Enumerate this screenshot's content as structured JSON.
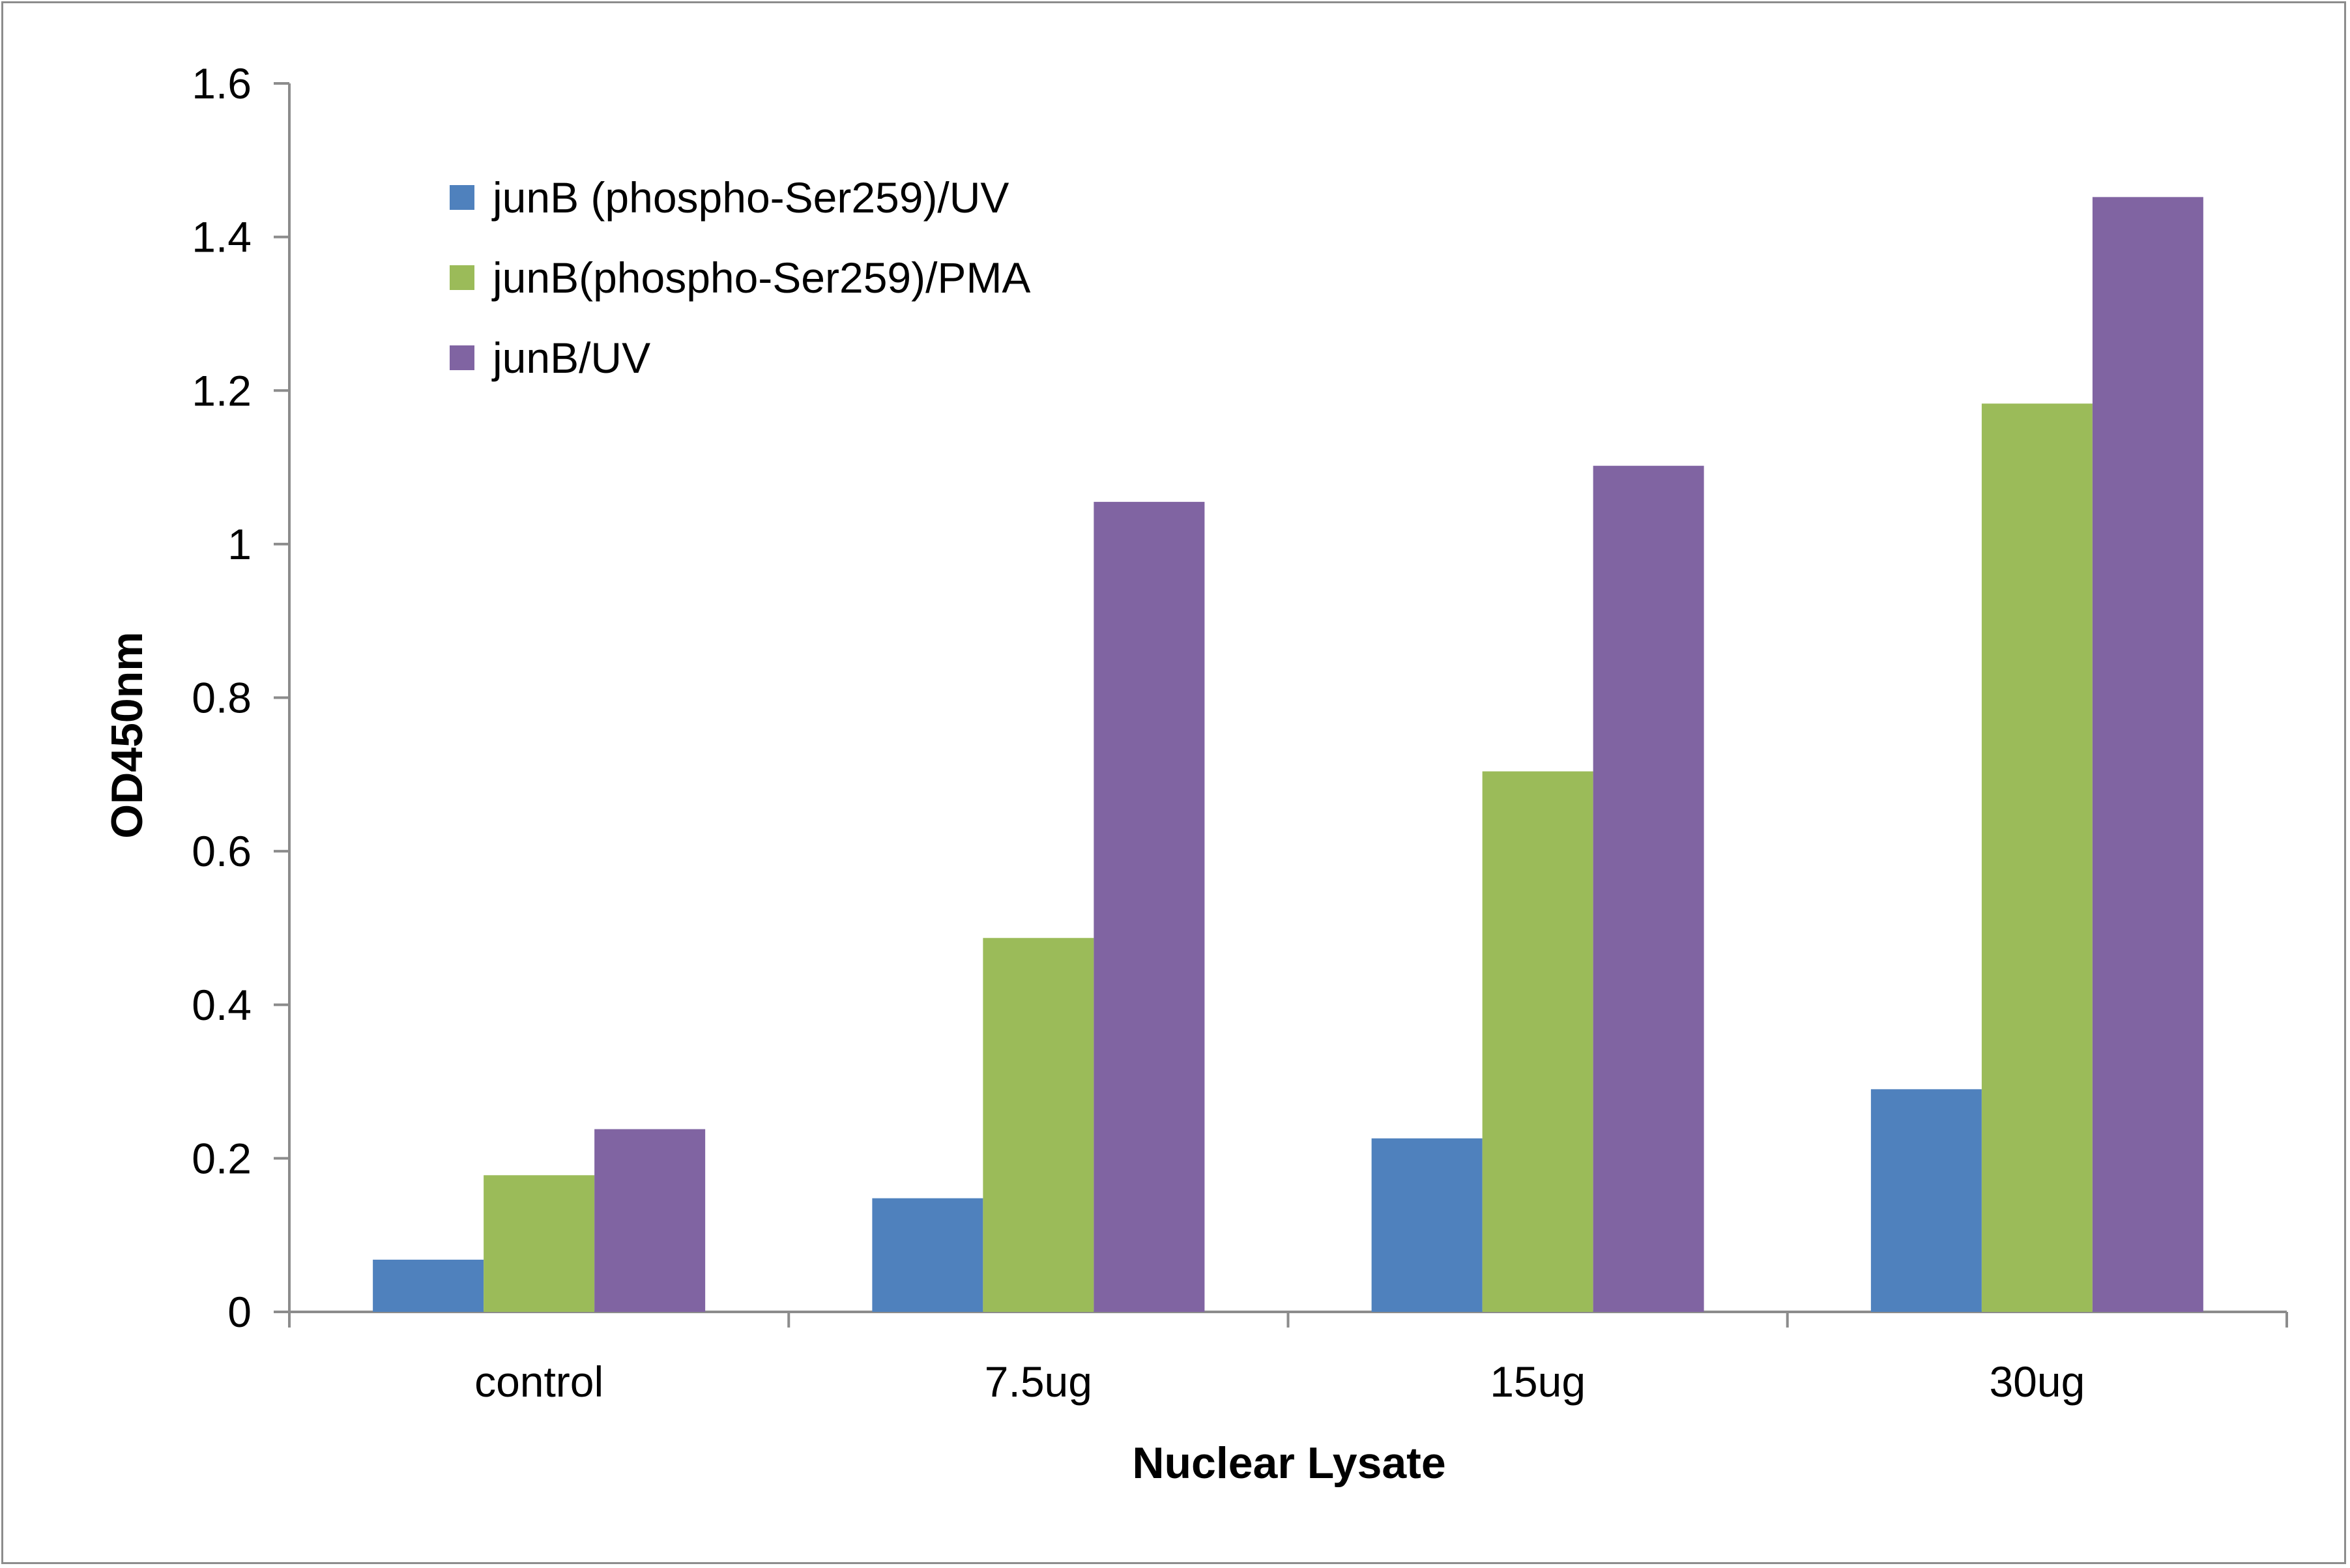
{
  "chart_data": {
    "type": "bar",
    "categories": [
      "control",
      "7.5ug",
      "15ug",
      "30ug"
    ],
    "series": [
      {
        "name": "junB (phospho-Ser259)/UV",
        "color": "#4f81bd",
        "values": [
          0.068,
          0.148,
          0.226,
          0.29
        ]
      },
      {
        "name": "junB(phospho-Ser259)/PMA",
        "color": "#9bbb59",
        "values": [
          0.178,
          0.487,
          0.704,
          1.183
        ]
      },
      {
        "name": "junB/UV",
        "color": "#8064a2",
        "values": [
          0.238,
          1.055,
          1.102,
          1.452
        ]
      }
    ],
    "title": "",
    "xlabel": "Nuclear Lysate",
    "ylabel": "OD450nm",
    "ylim": [
      0,
      1.6
    ],
    "yticks": [
      "0",
      "0.2",
      "0.4",
      "0.6",
      "0.8",
      "1",
      "1.2",
      "1.4",
      "1.6"
    ],
    "grid": false,
    "legend_position": "top-left"
  }
}
